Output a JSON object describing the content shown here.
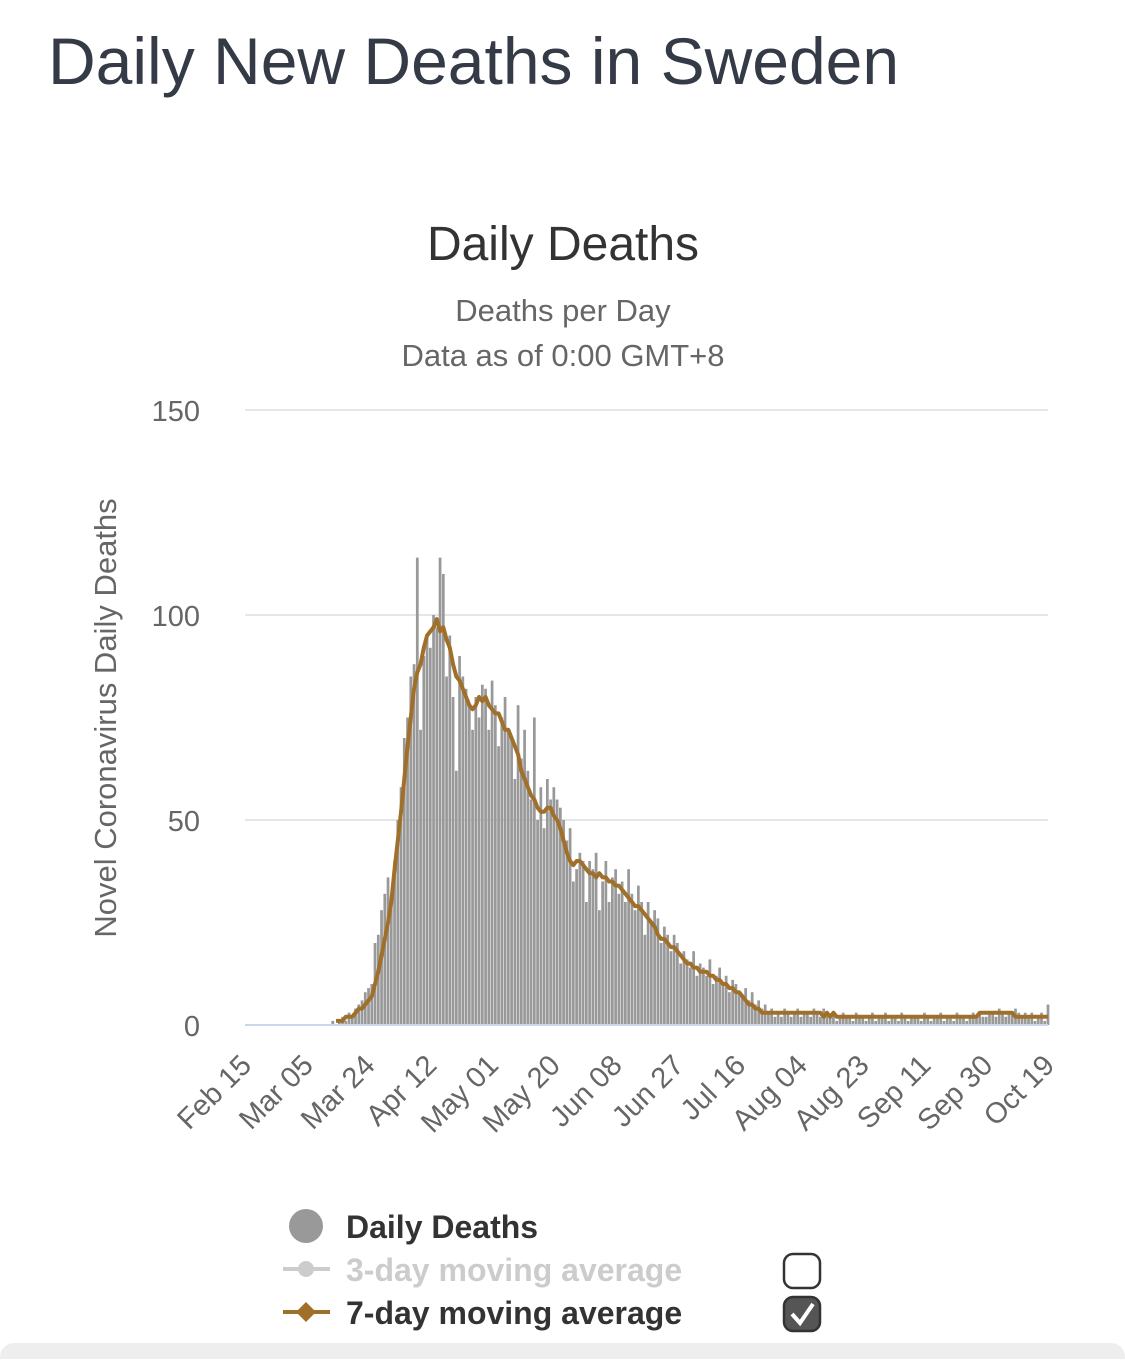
{
  "heading": "Daily New Deaths in Sweden",
  "chart_data": {
    "type": "bar-line",
    "title": "Daily Deaths",
    "subtitle": [
      "Deaths per Day",
      "Data as of 0:00 GMT+8"
    ],
    "y_label": "Novel Coronavirus Daily Deaths",
    "categories": [
      "Feb 15",
      null,
      null,
      null,
      null,
      null,
      null,
      null,
      null,
      null,
      null,
      null,
      null,
      null,
      null,
      null,
      null,
      null,
      null,
      "Mar 05",
      null,
      null,
      null,
      null,
      null,
      null,
      null,
      null,
      null,
      null,
      null,
      null,
      null,
      null,
      null,
      null,
      null,
      null,
      "Mar 24",
      null,
      null,
      null,
      null,
      null,
      null,
      null,
      null,
      null,
      null,
      null,
      null,
      null,
      null,
      null,
      null,
      null,
      null,
      "Apr 12",
      null,
      null,
      null,
      null,
      null,
      null,
      null,
      null,
      null,
      null,
      null,
      null,
      null,
      null,
      null,
      null,
      null,
      null,
      "May 01",
      null,
      null,
      null,
      null,
      null,
      null,
      null,
      null,
      null,
      null,
      null,
      null,
      null,
      null,
      null,
      null,
      null,
      null,
      "May 20",
      null,
      null,
      null,
      null,
      null,
      null,
      null,
      null,
      null,
      null,
      null,
      null,
      null,
      null,
      null,
      null,
      null,
      null,
      "Jun 08",
      null,
      null,
      null,
      null,
      null,
      null,
      null,
      null,
      null,
      null,
      null,
      null,
      null,
      null,
      null,
      null,
      null,
      null,
      "Jun 27",
      null,
      null,
      null,
      null,
      null,
      null,
      null,
      null,
      null,
      null,
      null,
      null,
      null,
      null,
      null,
      null,
      null,
      null,
      "Jul 16",
      null,
      null,
      null,
      null,
      null,
      null,
      null,
      null,
      null,
      null,
      null,
      null,
      null,
      null,
      null,
      null,
      null,
      null,
      "Aug 04",
      null,
      null,
      null,
      null,
      null,
      null,
      null,
      null,
      null,
      null,
      null,
      null,
      null,
      null,
      null,
      null,
      null,
      null,
      "Aug 23",
      null,
      null,
      null,
      null,
      null,
      null,
      null,
      null,
      null,
      null,
      null,
      null,
      null,
      null,
      null,
      null,
      null,
      null,
      "Sep 11",
      null,
      null,
      null,
      null,
      null,
      null,
      null,
      null,
      null,
      null,
      null,
      null,
      null,
      null,
      null,
      null,
      null,
      null,
      "Sep 30",
      null,
      null,
      null,
      null,
      null,
      null,
      null,
      null,
      null,
      null,
      null,
      null,
      null,
      null,
      null,
      null,
      null,
      null,
      "Oct 19"
    ],
    "series": [
      {
        "name": "Daily Deaths",
        "type": "bar",
        "color": "#999999",
        "visible": true,
        "values": [
          0,
          0,
          0,
          0,
          0,
          0,
          0,
          0,
          0,
          0,
          0,
          0,
          0,
          0,
          0,
          0,
          0,
          0,
          0,
          0,
          0,
          0,
          0,
          0,
          0,
          0,
          0,
          1,
          0,
          1,
          2,
          1,
          3,
          2,
          4,
          5,
          6,
          8,
          9,
          10,
          20,
          22,
          28,
          32,
          36,
          30,
          40,
          50,
          58,
          70,
          75,
          85,
          88,
          114,
          72,
          90,
          95,
          92,
          100,
          97,
          114,
          110,
          85,
          95,
          80,
          62,
          90,
          85,
          82,
          78,
          72,
          80,
          75,
          83,
          82,
          72,
          84,
          78,
          68,
          75,
          80,
          72,
          70,
          60,
          78,
          65,
          72,
          62,
          55,
          75,
          50,
          58,
          48,
          60,
          55,
          58,
          55,
          53,
          50,
          45,
          48,
          35,
          38,
          42,
          40,
          30,
          40,
          38,
          42,
          28,
          35,
          40,
          30,
          36,
          38,
          32,
          35,
          30,
          38,
          32,
          28,
          34,
          30,
          22,
          30,
          25,
          28,
          26,
          20,
          24,
          22,
          18,
          22,
          20,
          15,
          18,
          16,
          14,
          18,
          12,
          15,
          14,
          12,
          16,
          10,
          12,
          14,
          10,
          12,
          8,
          11,
          10,
          8,
          7,
          9,
          6,
          8,
          5,
          6,
          4,
          5,
          3,
          4,
          2,
          3,
          2,
          4,
          3,
          2,
          3,
          4,
          2,
          3,
          3,
          2,
          4,
          3,
          2,
          4,
          3,
          2,
          3,
          1,
          2,
          3,
          2,
          2,
          1,
          3,
          2,
          2,
          1,
          2,
          3,
          1,
          2,
          2,
          3,
          1,
          2,
          2,
          1,
          3,
          2,
          1,
          2,
          2,
          2,
          1,
          3,
          2,
          1,
          2,
          2,
          3,
          1,
          2,
          2,
          1,
          3,
          2,
          2,
          1,
          2,
          3,
          2,
          3,
          2,
          2,
          3,
          3,
          2,
          4,
          3,
          2,
          3,
          3,
          4,
          3,
          2,
          3,
          2,
          3,
          1,
          2,
          3,
          1,
          5
        ]
      },
      {
        "name": "3-day moving average",
        "type": "line",
        "color": "#cccccc",
        "visible": false
      },
      {
        "name": "7-day moving average",
        "type": "line",
        "color": "#a0702a",
        "visible": true,
        "values": [
          null,
          null,
          null,
          null,
          null,
          null,
          null,
          null,
          null,
          null,
          null,
          null,
          null,
          null,
          null,
          null,
          null,
          null,
          null,
          null,
          null,
          null,
          null,
          null,
          null,
          null,
          null,
          null,
          1,
          1,
          1,
          2,
          2,
          2,
          3,
          4,
          4,
          5,
          6,
          7,
          10,
          13,
          17,
          21,
          25,
          30,
          38,
          45,
          52,
          60,
          68,
          75,
          82,
          86,
          88,
          92,
          95,
          96,
          97,
          99,
          96,
          97,
          94,
          92,
          88,
          85,
          84,
          82,
          80,
          78,
          77,
          78,
          80,
          79,
          80,
          78,
          77,
          76,
          76,
          74,
          72,
          72,
          70,
          68,
          66,
          62,
          60,
          58,
          56,
          55,
          53,
          52,
          52,
          53,
          53,
          51,
          50,
          48,
          45,
          42,
          40,
          39,
          40,
          40,
          39,
          38,
          37,
          37,
          36,
          37,
          36,
          36,
          35,
          35,
          34,
          34,
          33,
          32,
          31,
          30,
          29,
          29,
          28,
          27,
          26,
          25,
          24,
          22,
          21,
          21,
          20,
          19,
          19,
          18,
          17,
          16,
          15,
          15,
          14,
          14,
          13,
          13,
          13,
          12,
          12,
          11,
          11,
          10,
          10,
          9,
          9,
          8,
          8,
          7,
          6,
          5,
          5,
          4,
          4,
          3,
          3,
          3,
          3,
          3,
          3,
          3,
          3,
          3,
          3,
          3,
          3,
          3,
          3,
          3,
          3,
          3,
          3,
          3,
          2,
          3,
          2,
          3,
          2,
          2,
          2,
          2,
          2,
          2,
          2,
          2,
          2,
          2,
          2,
          2,
          2,
          2,
          2,
          2,
          2,
          2,
          2,
          2,
          2,
          2,
          2,
          2,
          2,
          2,
          2,
          2,
          2,
          2,
          2,
          2,
          2,
          2,
          2,
          2,
          2,
          2,
          2,
          2,
          2,
          2,
          2,
          2,
          3,
          3,
          3,
          3,
          3,
          3,
          3,
          3,
          3,
          3,
          3,
          2,
          2,
          2,
          2,
          2,
          2,
          2,
          2,
          2,
          2,
          2
        ]
      }
    ],
    "ylim": [
      0,
      150
    ],
    "yticks": [
      0,
      50,
      100,
      150
    ],
    "grid": true
  }
}
